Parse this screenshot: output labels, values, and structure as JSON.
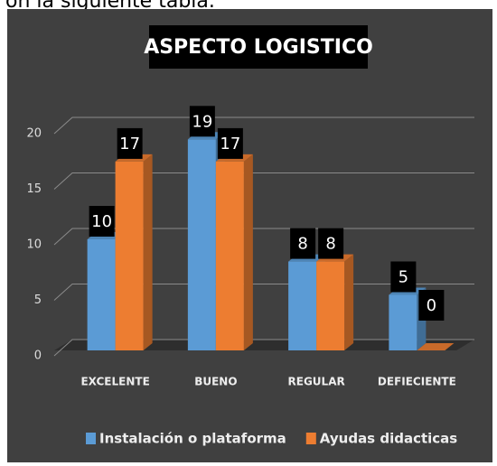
{
  "heading": "on la siguiente tabla.",
  "chart_data": {
    "type": "bar3d",
    "title": "ASPECTO LOGISTICO",
    "categories": [
      "EXCELENTE",
      "BUENO",
      "REGULAR",
      "DEFIECIENTE"
    ],
    "series": [
      {
        "name": "Instalación o  plataforma",
        "color": "#5b9bd5",
        "values": [
          10,
          19,
          8,
          5
        ]
      },
      {
        "name": "Ayudas didacticas",
        "color": "#ed7d31",
        "values": [
          17,
          17,
          8,
          0
        ]
      }
    ],
    "ylim": [
      0,
      20
    ],
    "yticks": [
      0,
      5,
      10,
      15,
      20
    ],
    "grid": true,
    "legend": "bottom"
  }
}
